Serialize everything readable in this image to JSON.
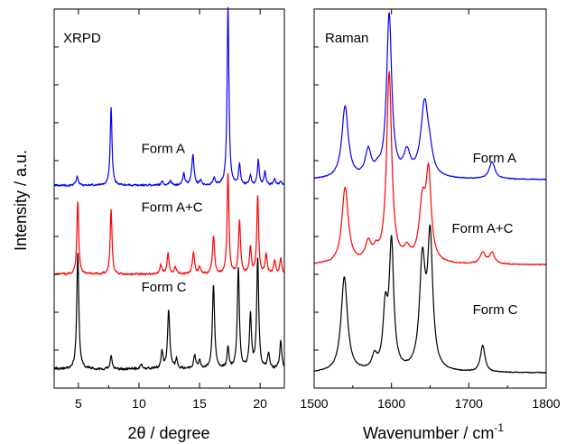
{
  "figure": {
    "ylabel": "Intensity / a.u."
  },
  "chart_data": [
    {
      "type": "line",
      "panel_label": "XRPD",
      "xlabel": "2θ / degree",
      "xlim": [
        3,
        22
      ],
      "ylim": [
        0,
        1
      ],
      "x_ticks": [
        5,
        10,
        15,
        20
      ],
      "y_ticks_labeled": false,
      "grid": false,
      "series": [
        {
          "name": "Form A",
          "color": "#0000ff",
          "label_position": [
            10.2,
            0.62
          ],
          "baseline": 0.535,
          "noise": 0.004,
          "peaks": [
            [
              4.9,
              0.022,
              0.1
            ],
            [
              7.7,
              0.205,
              0.09
            ],
            [
              11.9,
              0.01,
              0.1
            ],
            [
              12.6,
              0.012,
              0.1
            ],
            [
              13.7,
              0.03,
              0.1
            ],
            [
              14.45,
              0.08,
              0.11
            ],
            [
              15.1,
              0.012,
              0.1
            ],
            [
              16.2,
              0.018,
              0.1
            ],
            [
              17.35,
              0.47,
              0.09
            ],
            [
              18.3,
              0.055,
              0.09
            ],
            [
              19.2,
              0.025,
              0.09
            ],
            [
              19.85,
              0.065,
              0.09
            ],
            [
              20.4,
              0.035,
              0.09
            ],
            [
              21.2,
              0.018,
              0.1
            ],
            [
              21.7,
              0.01,
              0.1
            ]
          ]
        },
        {
          "name": "Form A+C",
          "color": "#ff0000",
          "label_position": [
            10.2,
            0.465
          ],
          "baseline": 0.3,
          "noise": 0.004,
          "peaks": [
            [
              4.95,
              0.195,
              0.09
            ],
            [
              7.7,
              0.17,
              0.09
            ],
            [
              11.8,
              0.025,
              0.1
            ],
            [
              12.4,
              0.055,
              0.1
            ],
            [
              13.0,
              0.02,
              0.1
            ],
            [
              14.5,
              0.055,
              0.11
            ],
            [
              15.0,
              0.018,
              0.1
            ],
            [
              16.15,
              0.1,
              0.1
            ],
            [
              17.35,
              0.265,
              0.09
            ],
            [
              18.3,
              0.14,
              0.1
            ],
            [
              19.2,
              0.07,
              0.09
            ],
            [
              19.8,
              0.205,
              0.09
            ],
            [
              20.5,
              0.05,
              0.1
            ],
            [
              21.2,
              0.035,
              0.1
            ],
            [
              21.7,
              0.04,
              0.1
            ]
          ]
        },
        {
          "name": "Form C",
          "color": "#000000",
          "label_position": [
            10.2,
            0.255
          ],
          "baseline": 0.05,
          "noise": 0.005,
          "peaks": [
            [
              4.95,
              0.305,
              0.1
            ],
            [
              7.7,
              0.035,
              0.09
            ],
            [
              10.2,
              0.012,
              0.12
            ],
            [
              11.9,
              0.045,
              0.1
            ],
            [
              12.45,
              0.155,
              0.11
            ],
            [
              13.1,
              0.025,
              0.1
            ],
            [
              14.6,
              0.035,
              0.1
            ],
            [
              15.0,
              0.02,
              0.1
            ],
            [
              16.15,
              0.22,
              0.11
            ],
            [
              17.35,
              0.055,
              0.09
            ],
            [
              18.2,
              0.265,
              0.1
            ],
            [
              19.2,
              0.14,
              0.1
            ],
            [
              19.8,
              0.29,
              0.1
            ],
            [
              20.7,
              0.04,
              0.1
            ],
            [
              21.7,
              0.075,
              0.1
            ]
          ]
        }
      ]
    },
    {
      "type": "line",
      "panel_label": "Raman",
      "xlabel": "Wavenumber / cm",
      "xlabel_superscript": "-1",
      "xlim": [
        1500,
        1800
      ],
      "ylim": [
        0,
        1
      ],
      "x_ticks": [
        1500,
        1600,
        1700,
        1800
      ],
      "y_ticks_labeled": false,
      "grid": false,
      "series": [
        {
          "name": "Form A",
          "color": "#0000ff",
          "label_position": [
            1705,
            0.595
          ],
          "baseline": 0.55,
          "noise": 0.002,
          "peaks": [
            [
              1540,
              0.19,
              5
            ],
            [
              1570,
              0.07,
              4.5
            ],
            [
              1582,
              0.015,
              4
            ],
            [
              1597,
              0.43,
              4
            ],
            [
              1620,
              0.06,
              5
            ],
            [
              1643,
              0.2,
              6
            ],
            [
              1650,
              0.03,
              4
            ],
            [
              1730,
              0.045,
              4.5
            ]
          ]
        },
        {
          "name": "Form A+C",
          "color": "#ff0000",
          "label_position": [
            1678,
            0.41
          ],
          "baseline": 0.325,
          "noise": 0.002,
          "peaks": [
            [
              1540,
              0.2,
              5
            ],
            [
              1570,
              0.05,
              4.5
            ],
            [
              1580,
              0.025,
              4
            ],
            [
              1597,
              0.5,
              4
            ],
            [
              1620,
              0.03,
              5
            ],
            [
              1640,
              0.15,
              5
            ],
            [
              1648,
              0.22,
              4
            ],
            [
              1718,
              0.03,
              4
            ],
            [
              1730,
              0.03,
              4
            ]
          ]
        },
        {
          "name": "Form C",
          "color": "#000000",
          "label_position": [
            1705,
            0.195
          ],
          "baseline": 0.04,
          "noise": 0.002,
          "peaks": [
            [
              1539,
              0.25,
              5
            ],
            [
              1578,
              0.035,
              4
            ],
            [
              1592,
              0.15,
              3.5
            ],
            [
              1600,
              0.33,
              3.5
            ],
            [
              1640,
              0.28,
              4.5
            ],
            [
              1650,
              0.34,
              4
            ],
            [
              1718,
              0.07,
              3.5
            ]
          ]
        }
      ]
    }
  ]
}
